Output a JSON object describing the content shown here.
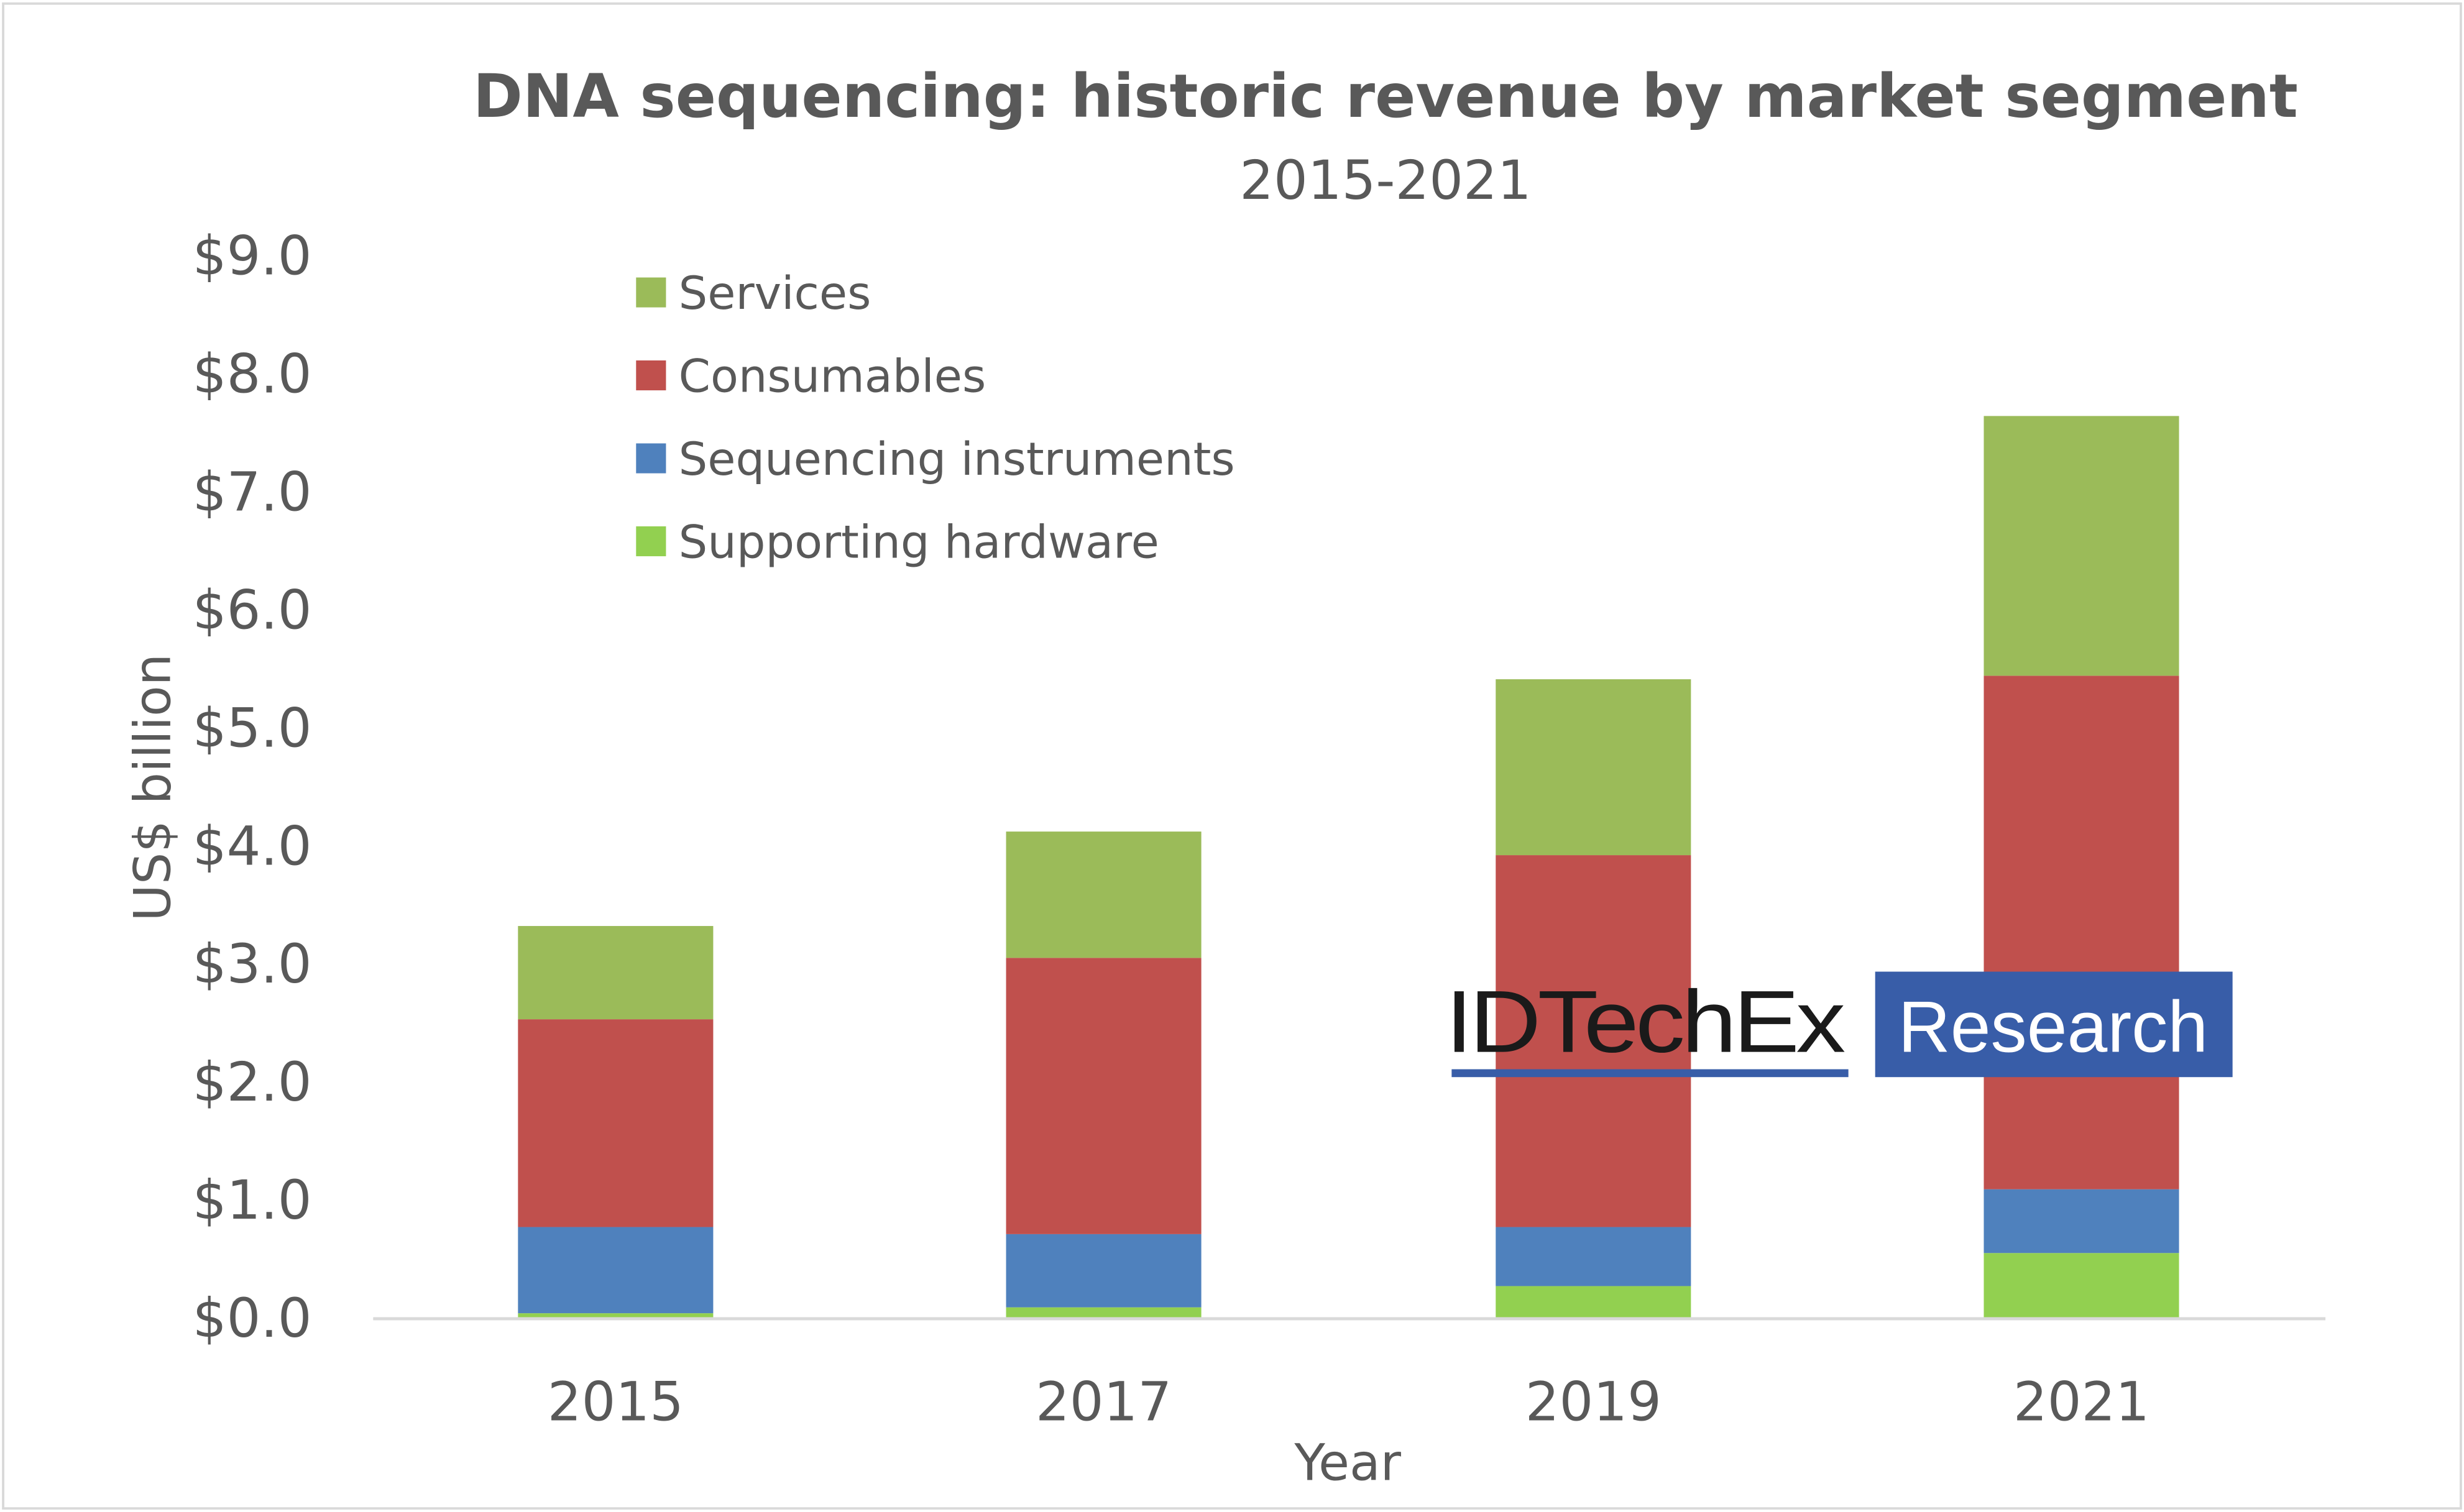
{
  "chart_data": {
    "type": "bar",
    "stacked": true,
    "title": "DNA sequencing: historic revenue by market segment",
    "subtitle": "2015-2021",
    "xlabel": "Year",
    "ylabel": "US$ billion",
    "ylim": [
      0,
      9
    ],
    "yticks": [
      "$0.0",
      "$1.0",
      "$2.0",
      "$3.0",
      "$4.0",
      "$5.0",
      "$6.0",
      "$7.0",
      "$8.0",
      "$9.0"
    ],
    "categories": [
      "2015",
      "2017",
      "2019",
      "2021"
    ],
    "grid": false,
    "legend_position": "top-left",
    "series": [
      {
        "name": "Supporting hardware",
        "color": "#92D050",
        "values": [
          0.04,
          0.09,
          0.27,
          0.55
        ]
      },
      {
        "name": "Sequencing instruments",
        "color": "#4F81BD",
        "values": [
          0.73,
          0.62,
          0.5,
          0.54
        ]
      },
      {
        "name": "Consumables",
        "color": "#C0504D",
        "values": [
          1.76,
          2.34,
          3.15,
          4.35
        ]
      },
      {
        "name": "Services",
        "color": "#9BBB59",
        "values": [
          0.79,
          1.07,
          1.49,
          2.2
        ]
      }
    ],
    "legend_order": [
      "Services",
      "Consumables",
      "Sequencing instruments",
      "Supporting hardware"
    ]
  },
  "watermark": {
    "brand": "IDTechEx",
    "tag": "Research",
    "color": "#385DA8"
  }
}
